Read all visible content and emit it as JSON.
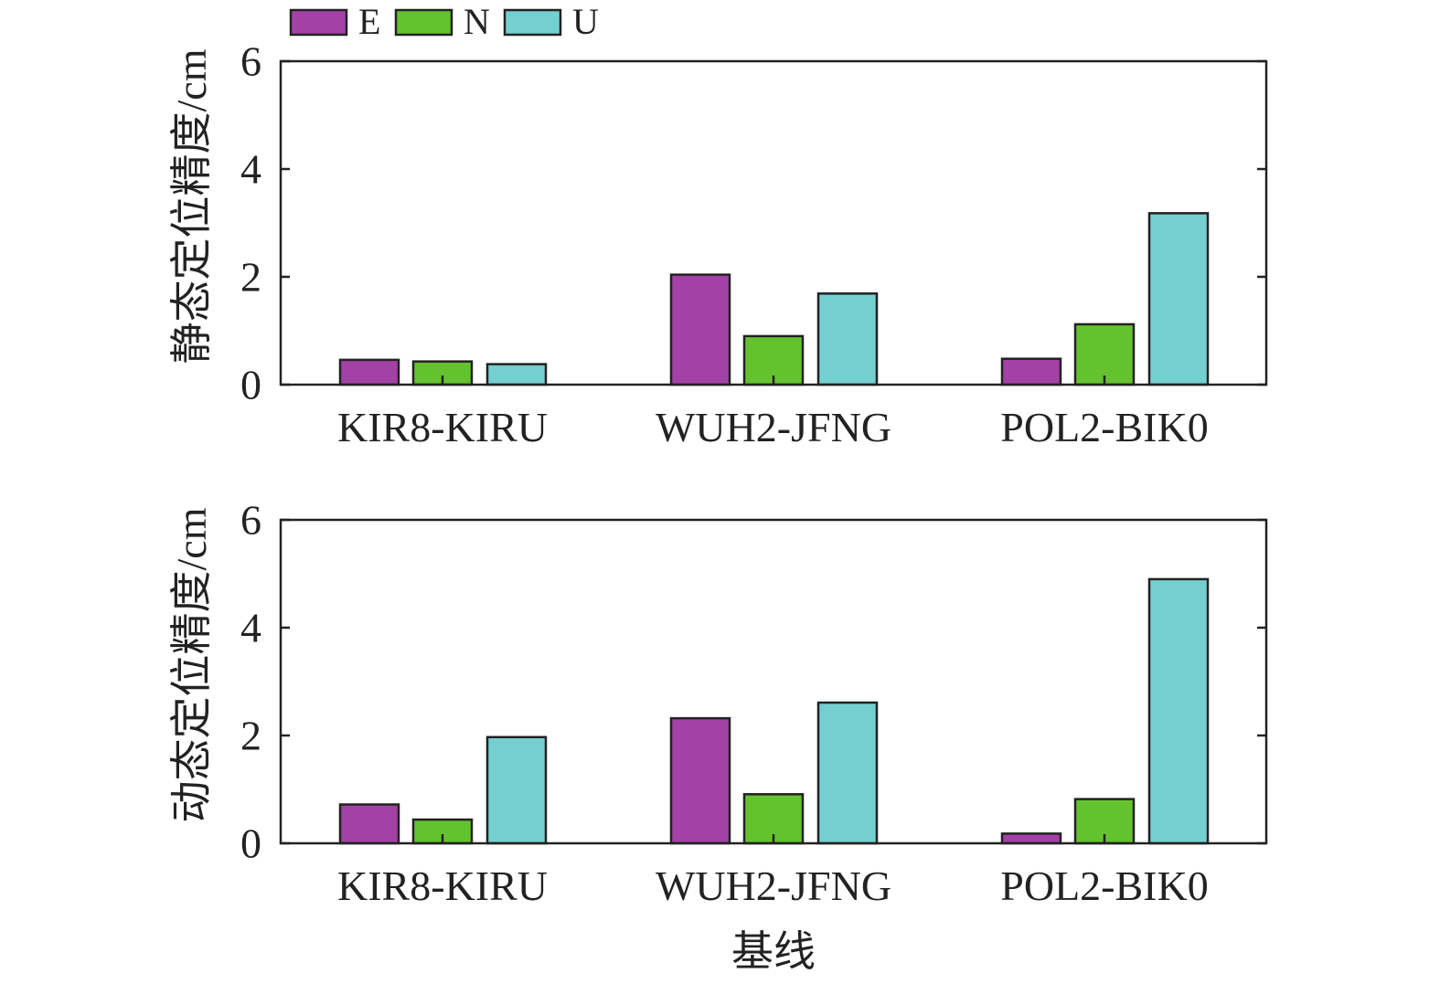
{
  "legend": [
    {
      "label": "E",
      "color": "#a241a6"
    },
    {
      "label": "N",
      "color": "#64c22f"
    },
    {
      "label": "U",
      "color": "#74d0d0"
    }
  ],
  "chart_data": [
    {
      "type": "bar",
      "ylabel": "静态定位精度/cm",
      "xlabel": "",
      "ylim": [
        0,
        6
      ],
      "yticks": [
        0,
        2,
        4,
        6
      ],
      "categories": [
        "KIR8-KIRU",
        "WUH2-JFNG",
        "POL2-BIK0"
      ],
      "series": [
        {
          "name": "E",
          "values": [
            0.46,
            2.04,
            0.48
          ]
        },
        {
          "name": "N",
          "values": [
            0.43,
            0.9,
            1.12
          ]
        },
        {
          "name": "U",
          "values": [
            0.38,
            1.69,
            3.18
          ]
        }
      ],
      "legend_position": "top-left",
      "grid": false
    },
    {
      "type": "bar",
      "ylabel": "动态定位精度/cm",
      "xlabel": "基线",
      "ylim": [
        0,
        6
      ],
      "yticks": [
        0,
        2,
        4,
        6
      ],
      "categories": [
        "KIR8-KIRU",
        "WUH2-JFNG",
        "POL2-BIK0"
      ],
      "series": [
        {
          "name": "E",
          "values": [
            0.72,
            2.32,
            0.18
          ]
        },
        {
          "name": "N",
          "values": [
            0.44,
            0.91,
            0.82
          ]
        },
        {
          "name": "U",
          "values": [
            1.97,
            2.61,
            4.9
          ]
        }
      ],
      "grid": false
    }
  ]
}
